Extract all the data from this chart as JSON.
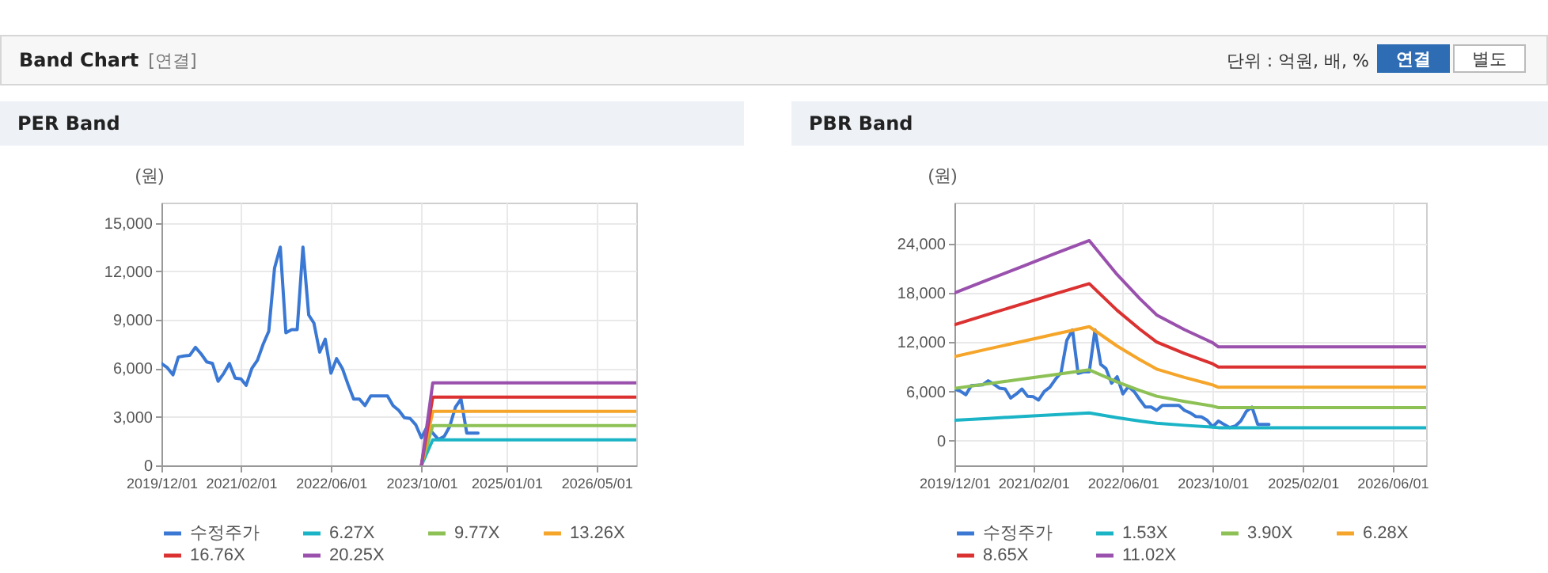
{
  "chart_data": [
    {
      "type": "line",
      "title": "PER Band",
      "ylabel": "(원)",
      "annotations": [
        "Band Chart",
        "[연결]",
        "단위 : 억원, 배, %",
        "연결",
        "별도"
      ],
      "x": [
        "2019-12-01",
        "2020-01-01",
        "2020-02-01",
        "2020-03-01",
        "2020-04-01",
        "2020-05-01",
        "2020-06-01",
        "2020-07-01",
        "2020-08-01",
        "2020-09-01",
        "2020-10-01",
        "2020-11-01",
        "2020-12-01",
        "2021-01-01",
        "2021-02-01",
        "2021-03-01",
        "2021-04-01",
        "2021-05-01",
        "2021-06-01",
        "2021-07-01",
        "2021-08-01",
        "2021-09-01",
        "2021-10-01",
        "2021-11-01",
        "2021-12-01",
        "2022-01-01",
        "2022-02-01",
        "2022-03-01",
        "2022-04-01",
        "2022-05-01",
        "2022-06-01",
        "2022-07-01",
        "2022-08-01",
        "2022-09-01",
        "2022-10-01",
        "2022-11-01",
        "2022-12-01",
        "2023-01-01",
        "2023-02-01",
        "2023-03-01",
        "2023-04-01",
        "2023-05-01",
        "2023-06-01",
        "2023-07-01",
        "2023-08-01",
        "2023-09-01",
        "2023-10-01",
        "2023-11-01",
        "2023-12-01",
        "2024-01-01",
        "2024-02-01",
        "2024-03-01",
        "2024-04-01",
        "2024-05-01",
        "2024-06-01",
        "2024-07-01",
        "2024-08-01"
      ],
      "series": [
        {
          "name": "수정주가",
          "color": "#3a78d4",
          "values": [
            6300,
            6050,
            5600,
            6700,
            6770,
            6800,
            7300,
            6900,
            6400,
            6300,
            5200,
            5700,
            6300,
            5400,
            5350,
            4950,
            6000,
            6500,
            7500,
            8300,
            12200,
            13500,
            8200,
            8400,
            8400,
            13500,
            9300,
            8800,
            7000,
            7800,
            5700,
            6600,
            6000,
            5000,
            4100,
            4100,
            3700,
            4300,
            4300,
            4300,
            4300,
            3700,
            3400,
            2950,
            2900,
            2500,
            1700,
            2400,
            2000,
            1600,
            1800,
            2400,
            3600,
            4100,
            2000,
            2000,
            2000
          ]
        },
        {
          "name": "6.27X",
          "color": "#1ab4c6",
          "x": [
            "2023-10-01",
            "2023-12-01",
            "2026-12-01"
          ],
          "values": [
            0,
            1580,
            1580
          ]
        },
        {
          "name": "9.77X",
          "color": "#8dc155",
          "x": [
            "2023-10-01",
            "2023-12-01",
            "2026-12-01"
          ],
          "values": [
            0,
            2460,
            2460
          ]
        },
        {
          "name": "13.26X",
          "color": "#f5a52a",
          "x": [
            "2023-10-01",
            "2023-12-01",
            "2026-12-01"
          ],
          "values": [
            0,
            3340,
            3340
          ]
        },
        {
          "name": "16.76X",
          "color": "#db3131",
          "x": [
            "2023-10-01",
            "2023-12-01",
            "2026-12-01"
          ],
          "values": [
            0,
            4220,
            4220
          ]
        },
        {
          "name": "20.25X",
          "color": "#9a50ad",
          "x": [
            "2023-10-01",
            "2023-12-01",
            "2026-12-01"
          ],
          "values": [
            0,
            5100,
            5100
          ]
        }
      ],
      "xlim": [
        "2019-12-01",
        "2026-12-01"
      ],
      "xticks": [
        {
          "value": "2019-12-01",
          "label": "2019/12/01"
        },
        {
          "value": "2021-02-01",
          "label": "2021/02/01"
        },
        {
          "value": "2022-06-01",
          "label": "2022/06/01"
        },
        {
          "value": "2023-10-01",
          "label": "2023/10/01"
        },
        {
          "value": "2025-01-01",
          "label": "2025/01/01"
        },
        {
          "value": "2026-05-01",
          "label": "2026/05/01"
        }
      ],
      "ylim": [
        0,
        16250
      ],
      "yticks": [
        0,
        {
          "value": 3000,
          "label": "3,000"
        },
        {
          "value": 6000,
          "label": "6,000"
        },
        {
          "value": 9000,
          "label": "9,000"
        },
        {
          "value": 12000,
          "label": "12,000"
        },
        {
          "value": 15000,
          "label": "15,000"
        }
      ],
      "grid": true,
      "legend": "bottom",
      "marker": "none",
      "line_style": "solid"
    },
    {
      "type": "line",
      "title": "PBR Band",
      "ylabel": "(원)",
      "x": [
        "2019-12-01",
        "2020-01-01",
        "2020-02-01",
        "2020-03-01",
        "2020-04-01",
        "2020-05-01",
        "2020-06-01",
        "2020-07-01",
        "2020-08-01",
        "2020-09-01",
        "2020-10-01",
        "2020-11-01",
        "2020-12-01",
        "2021-01-01",
        "2021-02-01",
        "2021-03-01",
        "2021-04-01",
        "2021-05-01",
        "2021-06-01",
        "2021-07-01",
        "2021-08-01",
        "2021-09-01",
        "2021-10-01",
        "2021-11-01",
        "2021-12-01",
        "2022-01-01",
        "2022-02-01",
        "2022-03-01",
        "2022-04-01",
        "2022-05-01",
        "2022-06-01",
        "2022-07-01",
        "2022-08-01",
        "2022-09-01",
        "2022-10-01",
        "2022-11-01",
        "2022-12-01",
        "2023-01-01",
        "2023-02-01",
        "2023-03-01",
        "2023-04-01",
        "2023-05-01",
        "2023-06-01",
        "2023-07-01",
        "2023-08-01",
        "2023-09-01",
        "2023-10-01",
        "2023-11-01",
        "2023-12-01",
        "2024-01-01",
        "2024-02-01",
        "2024-03-01",
        "2024-04-01",
        "2024-05-01",
        "2024-06-01",
        "2024-07-01",
        "2024-08-01"
      ],
      "series": [
        {
          "name": "수정주가",
          "color": "#3a78d4",
          "values": [
            6300,
            6050,
            5600,
            6700,
            6770,
            6800,
            7300,
            6900,
            6400,
            6300,
            5200,
            5700,
            6300,
            5400,
            5350,
            4950,
            6000,
            6500,
            7500,
            8300,
            12200,
            13500,
            8200,
            8400,
            8400,
            13500,
            9300,
            8800,
            7000,
            7800,
            5700,
            6600,
            6000,
            5000,
            4100,
            4100,
            3700,
            4300,
            4300,
            4300,
            4300,
            3700,
            3400,
            2950,
            2900,
            2500,
            1700,
            2400,
            2000,
            1600,
            1800,
            2400,
            3600,
            4100,
            2000,
            2000,
            2000
          ]
        },
        {
          "name": "1.53X",
          "color": "#1ab4c6",
          "x": [
            "2019-12-01",
            "2020-06-01",
            "2020-12-01",
            "2021-06-01",
            "2021-12-01",
            "2022-05-01",
            "2022-09-01",
            "2022-12-01",
            "2023-05-01",
            "2023-10-01",
            "2023-11-01",
            "2026-12-01"
          ],
          "values": [
            2500,
            2720,
            2950,
            3170,
            3380,
            2810,
            2400,
            2130,
            1880,
            1660,
            1590,
            1590
          ]
        },
        {
          "name": "3.90X",
          "color": "#8dc155",
          "x": [
            "2019-12-01",
            "2020-06-01",
            "2020-12-01",
            "2021-06-01",
            "2021-12-01",
            "2022-05-01",
            "2022-09-01",
            "2022-12-01",
            "2023-05-01",
            "2023-10-01",
            "2023-11-01",
            "2026-12-01"
          ],
          "values": [
            6370,
            6940,
            7510,
            8070,
            8630,
            7160,
            6120,
            5420,
            4790,
            4220,
            4040,
            4040
          ]
        },
        {
          "name": "6.28X",
          "color": "#f5a52a",
          "x": [
            "2019-12-01",
            "2020-06-01",
            "2020-12-01",
            "2021-06-01",
            "2021-12-01",
            "2022-05-01",
            "2022-09-01",
            "2022-12-01",
            "2023-05-01",
            "2023-10-01",
            "2023-11-01",
            "2026-12-01"
          ],
          "values": [
            10260,
            11180,
            12090,
            13000,
            13890,
            11530,
            9860,
            8730,
            7710,
            6800,
            6510,
            6510
          ]
        },
        {
          "name": "8.65X",
          "color": "#db3131",
          "x": [
            "2019-12-01",
            "2020-06-01",
            "2020-12-01",
            "2021-06-01",
            "2021-12-01",
            "2022-05-01",
            "2022-09-01",
            "2022-12-01",
            "2023-05-01",
            "2023-10-01",
            "2023-11-01",
            "2026-12-01"
          ],
          "values": [
            14130,
            15400,
            16650,
            17910,
            19130,
            15880,
            13580,
            12020,
            10620,
            9370,
            8970,
            8970
          ]
        },
        {
          "name": "11.02X",
          "color": "#9a50ad",
          "x": [
            "2019-12-01",
            "2020-06-01",
            "2020-12-01",
            "2021-06-01",
            "2021-12-01",
            "2022-05-01",
            "2022-09-01",
            "2022-12-01",
            "2023-05-01",
            "2023-10-01",
            "2023-11-01",
            "2026-12-01"
          ],
          "values": [
            18000,
            19620,
            21210,
            22810,
            24380,
            20230,
            17300,
            15320,
            13530,
            11930,
            11430,
            11430
          ]
        }
      ],
      "xlim": [
        "2019-12-01",
        "2026-12-01"
      ],
      "xticks": [
        {
          "value": "2019-12-01",
          "label": "2019/12/01"
        },
        {
          "value": "2021-02-01",
          "label": "2021/02/01"
        },
        {
          "value": "2022-06-01",
          "label": "2022/06/01"
        },
        {
          "value": "2023-10-01",
          "label": "2023/10/01"
        },
        {
          "value": "2025-02-01",
          "label": "2025/02/01"
        },
        {
          "value": "2026-06-01",
          "label": "2026/06/01"
        }
      ],
      "ylim": [
        -3000,
        29000
      ],
      "yticks": [
        0,
        {
          "value": 6000,
          "label": "6,000"
        },
        {
          "value": 12000,
          "label": "12,000"
        },
        {
          "value": 18000,
          "label": "18,000"
        },
        {
          "value": 24000,
          "label": "24,000"
        }
      ],
      "grid": true,
      "legend": "bottom",
      "marker": "none",
      "line_style": "solid"
    }
  ]
}
